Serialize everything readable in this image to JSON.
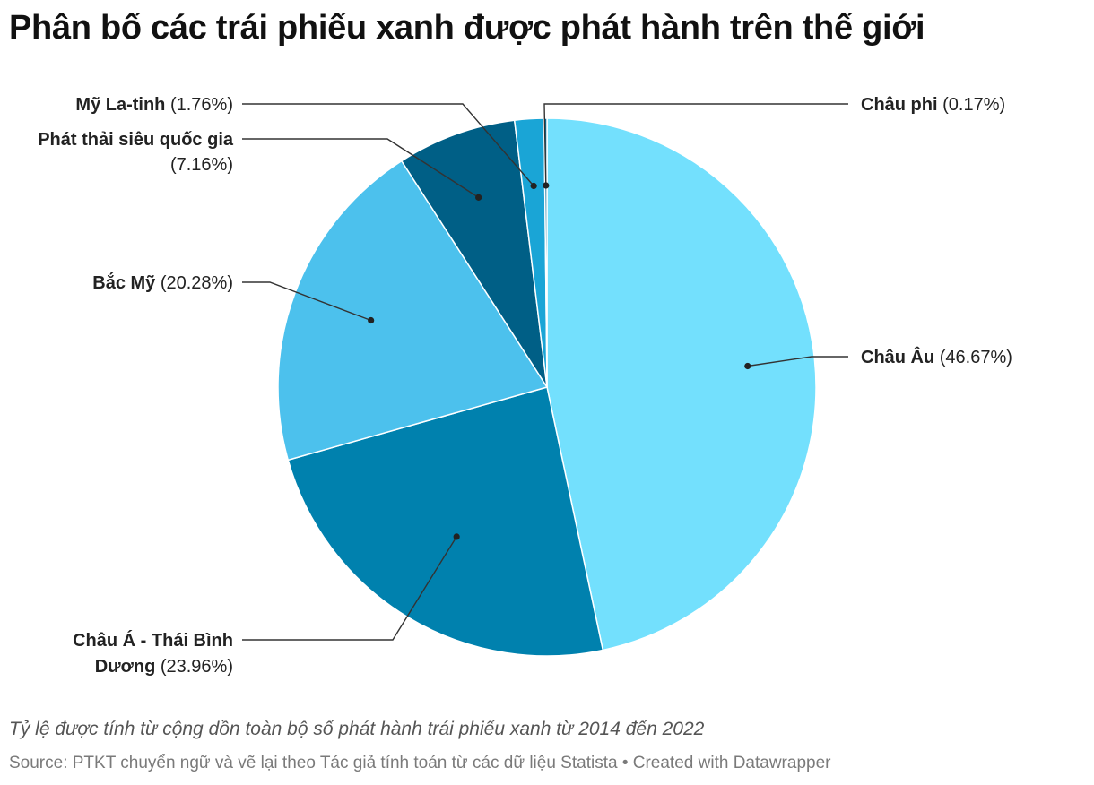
{
  "chart_data": {
    "type": "pie",
    "title": "Phân bố các trái phiếu xanh được phát hành trên thế giới",
    "note": "Tỷ lệ được tính từ cộng dồn toàn bộ số phát hành trái phiếu xanh từ 2014 đến 2022",
    "source": "Source: PTKT chuyển ngữ và vẽ lại theo Tác giả tính toán từ các dữ liệu Statista • Created with Datawrapper",
    "slices": [
      {
        "name": "Châu Âu",
        "value": 46.67,
        "value_label": "(46.67%)",
        "color": "#73e0fd"
      },
      {
        "name": "Châu Á - Thái Bình Dương",
        "name_lines": [
          "Châu Á - Thái Bình",
          "Dương"
        ],
        "value": 23.96,
        "value_label": "(23.96%)",
        "color": "#0081ae"
      },
      {
        "name": "Bắc Mỹ",
        "value": 20.28,
        "value_label": "(20.28%)",
        "color": "#4cc1ed"
      },
      {
        "name": "Phát thải siêu quốc gia",
        "value": 7.16,
        "value_label": "(7.16%)",
        "color": "#005f86"
      },
      {
        "name": "Mỹ La-tinh",
        "value": 1.76,
        "value_label": "(1.76%)",
        "color": "#1aa5d6"
      },
      {
        "name": "Châu phi",
        "value": 0.17,
        "value_label": "(0.17%)",
        "color": "#0a6a93"
      }
    ]
  }
}
